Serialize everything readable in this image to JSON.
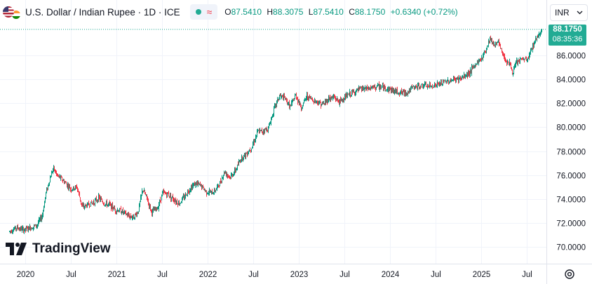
{
  "header": {
    "symbol": "U.S. Dollar / Indian Rupee · 1D · ICE",
    "ohlc": [
      {
        "k": "O",
        "v": "87.5410"
      },
      {
        "k": "H",
        "v": "88.3075"
      },
      {
        "k": "L",
        "v": "87.5410"
      },
      {
        "k": "C",
        "v": "88.1750"
      }
    ],
    "change": "+0.6340 (+0.72%)"
  },
  "currency": "INR",
  "price_label": {
    "price": "88.1750",
    "countdown": "08:35:36"
  },
  "brand": "TradingView",
  "colors": {
    "up": "#089981",
    "down": "#f23645",
    "accent": "#22ab94"
  },
  "icons": {
    "flag": "usd-inr-flag-icon",
    "chevron": "chevron-down-icon",
    "logo": "tradingview-logo-icon",
    "settings": "settings-icon"
  },
  "chart_data": {
    "type": "candlestick",
    "ylim": [
      69,
      89
    ],
    "y_ticks": [
      "70.0000",
      "72.0000",
      "74.0000",
      "76.0000",
      "78.0000",
      "80.0000",
      "82.0000",
      "84.0000",
      "86.0000"
    ],
    "x_ticks": [
      {
        "label": "2020",
        "t": 2020.0
      },
      {
        "label": "Jul",
        "t": 2020.5
      },
      {
        "label": "2021",
        "t": 2021.0
      },
      {
        "label": "Jul",
        "t": 2021.5
      },
      {
        "label": "2022",
        "t": 2022.0
      },
      {
        "label": "Jul",
        "t": 2022.5
      },
      {
        "label": "2023",
        "t": 2023.0
      },
      {
        "label": "Jul",
        "t": 2023.5
      },
      {
        "label": "2024",
        "t": 2024.0
      },
      {
        "label": "Jul",
        "t": 2024.5
      },
      {
        "label": "2025",
        "t": 2025.0
      },
      {
        "label": "Jul",
        "t": 2025.5
      }
    ],
    "last_price": 88.175,
    "series": [
      {
        "t": 2019.82,
        "v": 71.3
      },
      {
        "t": 2019.9,
        "v": 71.6
      },
      {
        "t": 2019.98,
        "v": 71.4
      },
      {
        "t": 2020.05,
        "v": 71.6
      },
      {
        "t": 2020.12,
        "v": 71.8
      },
      {
        "t": 2020.18,
        "v": 72.6
      },
      {
        "t": 2020.22,
        "v": 74.5
      },
      {
        "t": 2020.26,
        "v": 75.6
      },
      {
        "t": 2020.3,
        "v": 76.6
      },
      {
        "t": 2020.34,
        "v": 76.0
      },
      {
        "t": 2020.4,
        "v": 75.6
      },
      {
        "t": 2020.45,
        "v": 75.2
      },
      {
        "t": 2020.5,
        "v": 74.8
      },
      {
        "t": 2020.56,
        "v": 75.0
      },
      {
        "t": 2020.62,
        "v": 73.3
      },
      {
        "t": 2020.68,
        "v": 73.5
      },
      {
        "t": 2020.74,
        "v": 73.7
      },
      {
        "t": 2020.8,
        "v": 74.1
      },
      {
        "t": 2020.86,
        "v": 73.6
      },
      {
        "t": 2020.92,
        "v": 73.5
      },
      {
        "t": 2020.98,
        "v": 73.1
      },
      {
        "t": 2021.05,
        "v": 73.0
      },
      {
        "t": 2021.12,
        "v": 72.6
      },
      {
        "t": 2021.18,
        "v": 72.5
      },
      {
        "t": 2021.23,
        "v": 72.9
      },
      {
        "t": 2021.28,
        "v": 74.8
      },
      {
        "t": 2021.32,
        "v": 74.2
      },
      {
        "t": 2021.38,
        "v": 72.9
      },
      {
        "t": 2021.44,
        "v": 73.2
      },
      {
        "t": 2021.5,
        "v": 74.5
      },
      {
        "t": 2021.56,
        "v": 74.4
      },
      {
        "t": 2021.62,
        "v": 74.0
      },
      {
        "t": 2021.68,
        "v": 73.6
      },
      {
        "t": 2021.74,
        "v": 74.2
      },
      {
        "t": 2021.8,
        "v": 74.9
      },
      {
        "t": 2021.86,
        "v": 75.3
      },
      {
        "t": 2021.92,
        "v": 75.1
      },
      {
        "t": 2021.98,
        "v": 74.6
      },
      {
        "t": 2022.05,
        "v": 74.5
      },
      {
        "t": 2022.12,
        "v": 75.2
      },
      {
        "t": 2022.18,
        "v": 76.3
      },
      {
        "t": 2022.24,
        "v": 75.8
      },
      {
        "t": 2022.3,
        "v": 76.4
      },
      {
        "t": 2022.36,
        "v": 77.4
      },
      {
        "t": 2022.42,
        "v": 77.8
      },
      {
        "t": 2022.48,
        "v": 78.4
      },
      {
        "t": 2022.54,
        "v": 79.6
      },
      {
        "t": 2022.6,
        "v": 79.7
      },
      {
        "t": 2022.66,
        "v": 79.9
      },
      {
        "t": 2022.72,
        "v": 81.5
      },
      {
        "t": 2022.78,
        "v": 82.6
      },
      {
        "t": 2022.84,
        "v": 82.4
      },
      {
        "t": 2022.9,
        "v": 81.7
      },
      {
        "t": 2022.96,
        "v": 82.7
      },
      {
        "t": 2023.02,
        "v": 81.6
      },
      {
        "t": 2023.08,
        "v": 82.6
      },
      {
        "t": 2023.14,
        "v": 82.3
      },
      {
        "t": 2023.2,
        "v": 82.1
      },
      {
        "t": 2023.26,
        "v": 81.9
      },
      {
        "t": 2023.32,
        "v": 82.4
      },
      {
        "t": 2023.38,
        "v": 82.5
      },
      {
        "t": 2023.44,
        "v": 82.1
      },
      {
        "t": 2023.5,
        "v": 82.5
      },
      {
        "t": 2023.56,
        "v": 82.8
      },
      {
        "t": 2023.62,
        "v": 83.0
      },
      {
        "t": 2023.68,
        "v": 83.2
      },
      {
        "t": 2023.74,
        "v": 83.2
      },
      {
        "t": 2023.8,
        "v": 83.3
      },
      {
        "t": 2023.86,
        "v": 83.4
      },
      {
        "t": 2023.92,
        "v": 83.3
      },
      {
        "t": 2023.98,
        "v": 83.2
      },
      {
        "t": 2024.05,
        "v": 83.0
      },
      {
        "t": 2024.12,
        "v": 82.9
      },
      {
        "t": 2024.18,
        "v": 82.9
      },
      {
        "t": 2024.24,
        "v": 83.3
      },
      {
        "t": 2024.3,
        "v": 83.4
      },
      {
        "t": 2024.36,
        "v": 83.5
      },
      {
        "t": 2024.42,
        "v": 83.4
      },
      {
        "t": 2024.48,
        "v": 83.5
      },
      {
        "t": 2024.54,
        "v": 83.6
      },
      {
        "t": 2024.6,
        "v": 83.8
      },
      {
        "t": 2024.66,
        "v": 83.9
      },
      {
        "t": 2024.72,
        "v": 84.0
      },
      {
        "t": 2024.78,
        "v": 84.1
      },
      {
        "t": 2024.84,
        "v": 84.4
      },
      {
        "t": 2024.9,
        "v": 84.9
      },
      {
        "t": 2024.95,
        "v": 85.4
      },
      {
        "t": 2025.0,
        "v": 85.8
      },
      {
        "t": 2025.05,
        "v": 86.6
      },
      {
        "t": 2025.09,
        "v": 87.5
      },
      {
        "t": 2025.13,
        "v": 86.9
      },
      {
        "t": 2025.18,
        "v": 87.1
      },
      {
        "t": 2025.22,
        "v": 86.3
      },
      {
        "t": 2025.26,
        "v": 85.6
      },
      {
        "t": 2025.3,
        "v": 85.4
      },
      {
        "t": 2025.34,
        "v": 84.5
      },
      {
        "t": 2025.38,
        "v": 85.4
      },
      {
        "t": 2025.42,
        "v": 85.6
      },
      {
        "t": 2025.46,
        "v": 85.7
      },
      {
        "t": 2025.5,
        "v": 85.6
      },
      {
        "t": 2025.54,
        "v": 86.4
      },
      {
        "t": 2025.58,
        "v": 87.2
      },
      {
        "t": 2025.62,
        "v": 87.7
      },
      {
        "t": 2025.66,
        "v": 88.2
      }
    ]
  }
}
